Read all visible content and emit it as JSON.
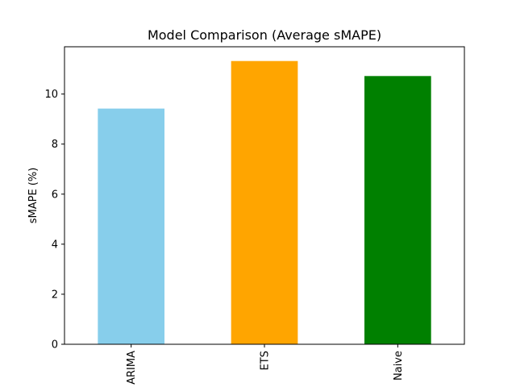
{
  "chart_data": {
    "type": "bar",
    "title": "Model Comparison (Average sMAPE)",
    "xlabel": "",
    "ylabel": "sMAPE (%)",
    "categories": [
      "ARIMA",
      "ETS",
      "Naive"
    ],
    "values": [
      9.42,
      11.32,
      10.72
    ],
    "colors": [
      "#87ceeb",
      "#ffa500",
      "#008000"
    ],
    "ylim": [
      0,
      11.89
    ],
    "yticks": [
      0,
      2,
      4,
      6,
      8,
      10
    ],
    "grid": false,
    "legend": "none"
  }
}
